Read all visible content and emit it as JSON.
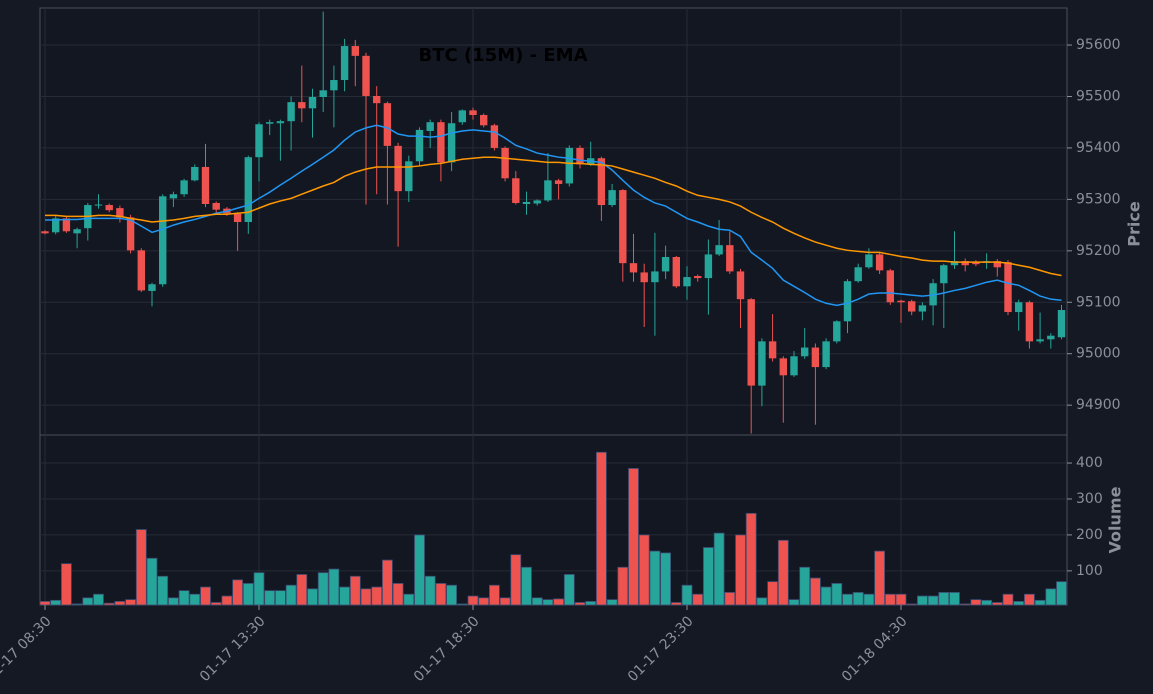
{
  "chart_data": {
    "type": "candlestick",
    "title": "BTC (15M) - EMA",
    "ylabel": "Price",
    "categories": [
      "01-17 08:30",
      null,
      null,
      null,
      null,
      null,
      null,
      null,
      null,
      null,
      null,
      null,
      null,
      null,
      null,
      null,
      null,
      null,
      null,
      null,
      "01-17 13:30",
      null,
      null,
      null,
      null,
      null,
      null,
      null,
      null,
      null,
      null,
      null,
      null,
      null,
      null,
      null,
      null,
      null,
      null,
      null,
      "01-17 18:30",
      null,
      null,
      null,
      null,
      null,
      null,
      null,
      null,
      null,
      null,
      null,
      null,
      null,
      null,
      null,
      null,
      null,
      null,
      null,
      "01-17 23:30",
      null,
      null,
      null,
      null,
      null,
      null,
      null,
      null,
      null,
      null,
      null,
      null,
      null,
      null,
      null,
      null,
      null,
      null,
      null,
      "01-18 04:30",
      null,
      null,
      null,
      null,
      null,
      null,
      null,
      null,
      null,
      null,
      null,
      null,
      null,
      null,
      null
    ],
    "open": [
      95238,
      95236,
      95263,
      95234,
      95244,
      95288,
      95289,
      95283,
      95265,
      95201,
      95122,
      95135,
      95302,
      95310,
      95337,
      95363,
      95293,
      95282,
      95272,
      95256,
      95382,
      95447,
      95448,
      95452,
      95489,
      95477,
      95499,
      95512,
      95532,
      95598,
      95579,
      95501,
      95487,
      95404,
      95316,
      95374,
      95433,
      95450,
      95372,
      95450,
      95473,
      95464,
      95444,
      95400,
      95341,
      95291,
      95292,
      95298,
      95337,
      95331,
      95400,
      95368,
      95380,
      95289,
      95318,
      95176,
      95158,
      95139,
      95160,
      95188,
      95131,
      95151,
      95147,
      95193,
      95211,
      95160,
      95106,
      94938,
      95024,
      94991,
      94958,
      94995,
      95012,
      94974,
      95024,
      95063,
      95141,
      95168,
      95193,
      95162,
      95103,
      95102,
      95082,
      95094,
      95137,
      95172,
      95180,
      95178,
      95177,
      95180,
      95178,
      95081,
      95100,
      95024,
      95028,
      95032
    ],
    "high": [
      95240,
      95270,
      95268,
      95245,
      95293,
      95310,
      95292,
      95288,
      95270,
      95205,
      95138,
      95310,
      95315,
      95340,
      95368,
      95408,
      95296,
      95285,
      95275,
      95385,
      95450,
      95455,
      95455,
      95500,
      95560,
      95515,
      95665,
      95560,
      95612,
      95610,
      95585,
      95520,
      95490,
      95410,
      95385,
      95440,
      95455,
      95455,
      95470,
      95475,
      95478,
      95467,
      95447,
      95403,
      95355,
      95315,
      95300,
      95390,
      95340,
      95405,
      95405,
      95412,
      95383,
      95330,
      95320,
      95233,
      95175,
      95235,
      95210,
      95190,
      95170,
      95154,
      95222,
      95260,
      95238,
      95165,
      95108,
      95030,
      95077,
      94995,
      95005,
      95050,
      95020,
      95030,
      95065,
      95145,
      95175,
      95205,
      95198,
      95165,
      95105,
      95105,
      95100,
      95145,
      95175,
      95238,
      95185,
      95182,
      95195,
      95184,
      95182,
      95105,
      95103,
      95080,
      95040,
      95095
    ],
    "low": [
      95232,
      95232,
      95235,
      95205,
      95220,
      95282,
      95275,
      95255,
      95195,
      95120,
      95092,
      95130,
      95285,
      95305,
      95335,
      95285,
      95270,
      95268,
      95200,
      95233,
      95335,
      95425,
      95375,
      95395,
      95450,
      95420,
      95470,
      95440,
      95510,
      95520,
      95290,
      95310,
      95290,
      95208,
      95295,
      95365,
      95400,
      95335,
      95355,
      95445,
      95455,
      95440,
      95395,
      95335,
      95290,
      95270,
      95288,
      95295,
      95300,
      95325,
      95360,
      95365,
      95258,
      95285,
      95140,
      95140,
      95052,
      95035,
      95145,
      95128,
      95105,
      95140,
      95076,
      95190,
      95155,
      95050,
      94845,
      94898,
      94985,
      94866,
      94955,
      94990,
      94862,
      94970,
      95020,
      95040,
      95138,
      95165,
      95155,
      95095,
      95060,
      95075,
      95065,
      95055,
      95050,
      95165,
      95160,
      95170,
      95165,
      95150,
      95075,
      95045,
      95010,
      95020,
      95010,
      95028
    ],
    "close": [
      95234,
      95263,
      95238,
      95242,
      95289,
      95290,
      95279,
      95265,
      95201,
      95123,
      95135,
      95306,
      95310,
      95337,
      95363,
      95291,
      95280,
      95273,
      95256,
      95382,
      95446,
      95450,
      95452,
      95489,
      95477,
      95499,
      95512,
      95532,
      95598,
      95579,
      95501,
      95487,
      95404,
      95316,
      95374,
      95435,
      95450,
      95372,
      95448,
      95473,
      95464,
      95444,
      95400,
      95341,
      95293,
      95295,
      95298,
      95337,
      95330,
      95400,
      95368,
      95380,
      95289,
      95318,
      95176,
      95158,
      95139,
      95160,
      95188,
      95131,
      95149,
      95147,
      95193,
      95211,
      95160,
      95106,
      94938,
      95024,
      94991,
      94958,
      94995,
      95012,
      94974,
      95024,
      95063,
      95141,
      95168,
      95193,
      95162,
      95100,
      95100,
      95082,
      95094,
      95137,
      95172,
      95180,
      95172,
      95174,
      95180,
      95168,
      95081,
      95100,
      95024,
      95028,
      95035,
      95085
    ],
    "up_color": "#26a69a",
    "down_color": "#ef5350",
    "series": [
      {
        "color": "#2196f3",
        "values": [
          95260,
          95260,
          95261,
          95261,
          95263,
          95263,
          95263,
          95263,
          95260,
          95248,
          95236,
          95242,
          95250,
          95256,
          95261,
          95267,
          95273,
          95277,
          95283,
          95289,
          95302,
          95314,
          95328,
          95341,
          95355,
          95368,
          95382,
          95396,
          95415,
          95431,
          95439,
          95444,
          95439,
          95427,
          95423,
          95423,
          95421,
          95423,
          95429,
          95433,
          95435,
          95433,
          95431,
          95419,
          95405,
          95398,
          95390,
          95386,
          95382,
          95380,
          95376,
          95374,
          95372,
          95357,
          95337,
          95318,
          95304,
          95293,
          95287,
          95275,
          95263,
          95256,
          95248,
          95242,
          95240,
          95228,
          95197,
          95182,
          95166,
          95143,
          95131,
          95119,
          95106,
          95098,
          95094,
          95098,
          95106,
          95116,
          95118,
          95118,
          95116,
          95114,
          95112,
          95114,
          95118,
          95123,
          95127,
          95133,
          95139,
          95143,
          95137,
          95133,
          95123,
          95112,
          95106,
          95104
        ]
      },
      {
        "color": "#ff9800",
        "values": [
          95269,
          95269,
          95267,
          95267,
          95267,
          95269,
          95269,
          95267,
          95263,
          95260,
          95256,
          95258,
          95260,
          95263,
          95267,
          95269,
          95271,
          95271,
          95273,
          95275,
          95283,
          95291,
          95297,
          95302,
          95310,
          95318,
          95326,
          95333,
          95345,
          95353,
          95359,
          95363,
          95363,
          95363,
          95363,
          95365,
          95368,
          95370,
          95374,
          95378,
          95380,
          95382,
          95382,
          95380,
          95378,
          95376,
          95374,
          95372,
          95372,
          95370,
          95370,
          95368,
          95367,
          95365,
          95359,
          95353,
          95347,
          95341,
          95333,
          95326,
          95316,
          95308,
          95304,
          95300,
          95295,
          95287,
          95275,
          95265,
          95256,
          95244,
          95234,
          95225,
          95217,
          95211,
          95205,
          95201,
          95199,
          95197,
          95197,
          95193,
          95189,
          95186,
          95182,
          95180,
          95180,
          95178,
          95178,
          95178,
          95178,
          95178,
          95176,
          95172,
          95168,
          95162,
          95156,
          95152
        ]
      }
    ],
    "ylim": [
      94842,
      95672
    ],
    "yticks": [
      94900,
      95000,
      95100,
      95200,
      95300,
      95400,
      95500,
      95600
    ],
    "grid": true,
    "volume": {
      "ylabel": "Volume",
      "ylim": [
        5,
        478
      ],
      "yticks": [
        100,
        200,
        300,
        400
      ],
      "values": [
        15,
        18,
        120,
        8,
        25,
        35,
        10,
        15,
        20,
        215,
        135,
        85,
        25,
        45,
        35,
        55,
        12,
        30,
        75,
        65,
        95,
        45,
        45,
        60,
        90,
        50,
        95,
        105,
        55,
        85,
        50,
        55,
        130,
        65,
        35,
        200,
        85,
        65,
        60,
        8,
        30,
        25,
        60,
        25,
        145,
        110,
        25,
        20,
        22,
        90,
        12,
        15,
        430,
        20,
        110,
        385,
        200,
        155,
        150,
        12,
        60,
        35,
        165,
        205,
        40,
        200,
        260,
        25,
        70,
        185,
        20,
        110,
        80,
        55,
        65,
        35,
        40,
        35,
        155,
        35,
        35,
        8,
        30,
        30,
        40,
        40,
        8,
        20,
        18,
        12,
        35,
        15,
        35,
        18,
        50,
        70
      ]
    }
  }
}
